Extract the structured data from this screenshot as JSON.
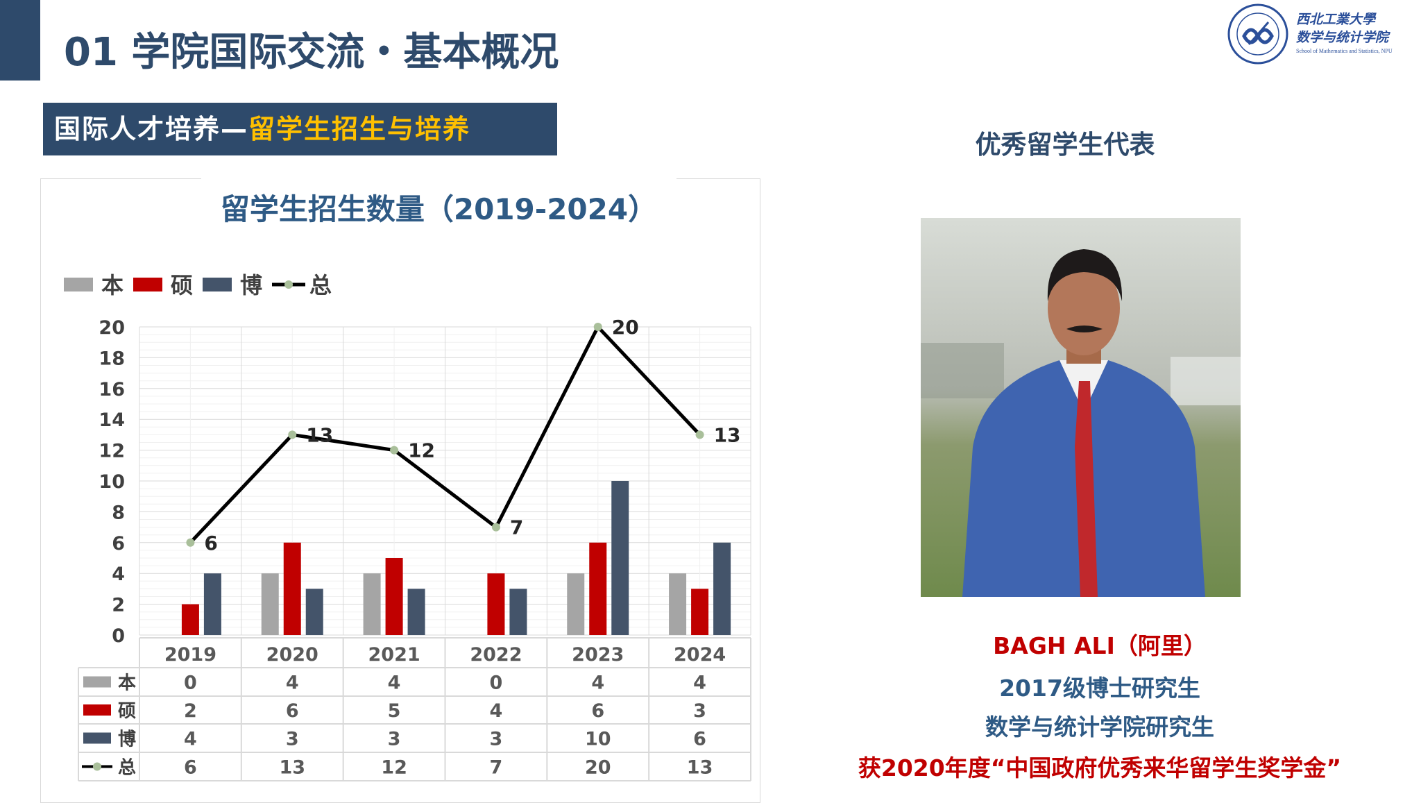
{
  "header": {
    "title": "01 学院国际交流・基本概况",
    "logo_text": [
      "西北工業大學",
      "数学与统计学院",
      "School of Mathematics and Statistics, NPU"
    ]
  },
  "banner": {
    "prefix": "国际人才培养—",
    "highlight": "留学生招生与培养"
  },
  "chart_data": {
    "type": "bar+line",
    "title": "留学生招生数量（2019-2024）",
    "categories": [
      "2019",
      "2020",
      "2021",
      "2022",
      "2023",
      "2024"
    ],
    "series": [
      {
        "name": "本",
        "type": "bar",
        "color": "#a5a5a5",
        "values": [
          0,
          4,
          4,
          0,
          4,
          4
        ]
      },
      {
        "name": "硕",
        "type": "bar",
        "color": "#c00000",
        "values": [
          2,
          6,
          5,
          4,
          6,
          3
        ]
      },
      {
        "name": "博",
        "type": "bar",
        "color": "#44546a",
        "values": [
          4,
          3,
          3,
          3,
          10,
          6
        ]
      },
      {
        "name": "总",
        "type": "line",
        "color": "#000000",
        "marker_color": "#a9bf9a",
        "values": [
          6,
          13,
          12,
          7,
          20,
          13
        ]
      }
    ],
    "ylim": [
      0,
      20
    ],
    "yticks": [
      0,
      2,
      4,
      6,
      8,
      10,
      12,
      14,
      16,
      18,
      20
    ],
    "grid": true,
    "legend": "top-left",
    "data_table": true
  },
  "right": {
    "title": "优秀留学生代表",
    "name": "BAGH ALI（阿里）",
    "line1": "2017级博士研究生",
    "line2": "数学与统计学院研究生",
    "award": "获2020年度“中国政府优秀来华留学生奖学金”"
  },
  "colors": {
    "primary": "#2e4a6b",
    "accent": "#ffc000",
    "red": "#c00000"
  }
}
